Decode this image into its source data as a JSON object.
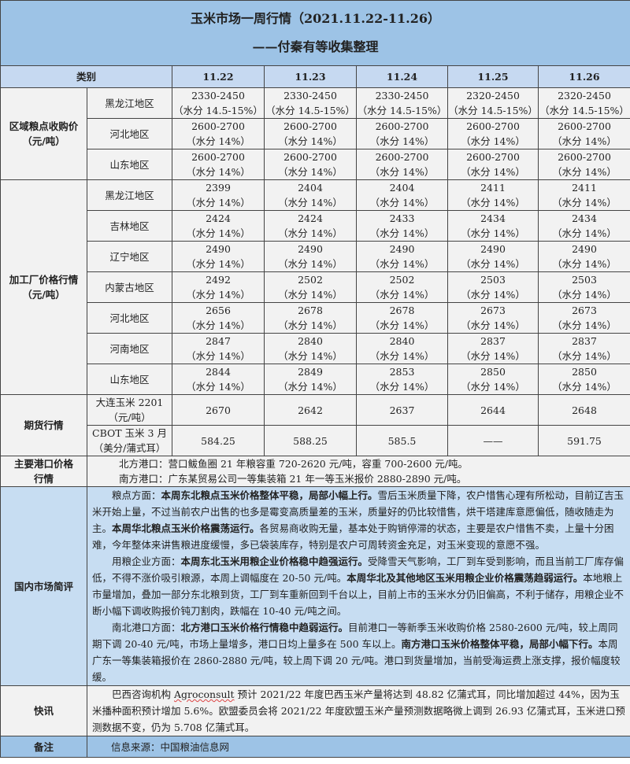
{
  "title": "玉米市场一周行情（2021.11.22-11.26）",
  "subtitle": "——付秦有等收集整理",
  "header": {
    "category": "类别",
    "dates": [
      "11.22",
      "11.23",
      "11.24",
      "11.25",
      "11.26"
    ]
  },
  "grain_purchase": {
    "label": "区域粮点收购价\n（元/吨）",
    "rows": [
      {
        "region": "黑龙江地区",
        "values": [
          "2330-2450",
          "2330-2450",
          "2330-2450",
          "2320-2450",
          "2320-2450"
        ],
        "note": "（水分 14.5-15%）"
      },
      {
        "region": "河北地区",
        "values": [
          "2600-2700",
          "2600-2700",
          "2600-2700",
          "2600-2700",
          "2600-2700"
        ],
        "note": "（水分 14%）"
      },
      {
        "region": "山东地区",
        "values": [
          "2600-2700",
          "2600-2700",
          "2600-2700",
          "2600-2700",
          "2600-2700"
        ],
        "note": "（水分 14%）"
      }
    ]
  },
  "factory_price": {
    "label": "加工厂价格行情\n（元/吨）",
    "rows": [
      {
        "region": "黑龙江地区",
        "values": [
          "2399",
          "2404",
          "2404",
          "2411",
          "2411"
        ],
        "note": "（水分 14%）"
      },
      {
        "region": "吉林地区",
        "values": [
          "2424",
          "2424",
          "2433",
          "2434",
          "2434"
        ],
        "note": "（水分 14%）"
      },
      {
        "region": "辽宁地区",
        "values": [
          "2490",
          "2490",
          "2490",
          "2490",
          "2490"
        ],
        "note": "（水分 14%）"
      },
      {
        "region": "内蒙古地区",
        "values": [
          "2492",
          "2502",
          "2502",
          "2503",
          "2503"
        ],
        "note": "（水分 14%）"
      },
      {
        "region": "河北地区",
        "values": [
          "2656",
          "2678",
          "2678",
          "2673",
          "2673"
        ],
        "note": "（水分 14%）"
      },
      {
        "region": "河南地区",
        "values": [
          "2847",
          "2840",
          "2840",
          "2837",
          "2837"
        ],
        "note": "（水分 14%）"
      },
      {
        "region": "山东地区",
        "values": [
          "2844",
          "2849",
          "2853",
          "2850",
          "2850"
        ],
        "note": "（水分 14%）"
      }
    ]
  },
  "futures": {
    "label": "期货行情",
    "rows": [
      {
        "region": "大连玉米 2201\n（元/吨）",
        "values": [
          "2670",
          "2642",
          "2637",
          "2644",
          "2648"
        ]
      },
      {
        "region": "CBOT 玉米 3 月\n（美分/蒲式耳）",
        "values": [
          "584.25",
          "588.25",
          "585.5",
          "——",
          "591.75"
        ]
      }
    ]
  },
  "ports": {
    "label": "主要港口价格\n行情",
    "lines": [
      "北方港口：营口鲅鱼圈 21 年粮容重 720-2620 元/吨，容重 700-2600 元/吨。",
      "南方港口：广东某贸易公司一等集装箱 21 年一等玉米报价 2880-2890 元/吨。"
    ]
  },
  "commentary": {
    "label": "国内市场简评",
    "paragraphs": [
      [
        {
          "t": "粮点方面："
        },
        {
          "t": "本周东北粮点玉米价格整体平稳，局部小幅上行。",
          "b": true
        },
        {
          "t": "雪后玉米质量下降，农户惜售心理有所松动，目前辽吉玉米开始上量，不过当前农户出售的也多是霉变高质量差的玉米，质量好的仍比较惜售，烘干塔建库意愿偏低，随收随走为主。"
        },
        {
          "t": "本周华北粮点玉米价格震荡运行。",
          "b": true
        },
        {
          "t": "各贸易商收购无量，基本处于购销停滞的状态，主要是农户惜售不卖，上量十分困难，今年整体来讲售粮进度缓慢，多已袋装库存，特别是农户可周转资金充足，对玉米变现的意愿不强。"
        }
      ],
      [
        {
          "t": "用粮企业方面："
        },
        {
          "t": "本周东北玉米用粮企业价格稳中趋强运行。",
          "b": true
        },
        {
          "t": "受降雪天气影响，工厂到车受到影响，而且当前工厂库存偏低，不得不涨价吸引粮源，本周上调幅度在 20-50 元/吨。"
        },
        {
          "t": "本周华北及其他地区玉米用粮企业价格震荡趋弱运行。",
          "b": true
        },
        {
          "t": "本地粮上市量增加，叠加一部分东北粮到货，工厂到车重新回到千台以上，目前上市的玉米水分仍旧偏高，不利于储存，用粮企业不断小幅下调收购报价钝刀割肉，跌幅在 10-40 元/吨之间。"
        }
      ],
      [
        {
          "t": "南北港口方面："
        },
        {
          "t": "北方港口玉米价格行情稳中趋弱运行。",
          "b": true
        },
        {
          "t": "目前港口一等新季玉米收购价格 2580-2600 元/吨，较上周同期下调 20-40 元/吨，市场上量增多，港口日均上量多在 500 车以上。"
        },
        {
          "t": "南方港口玉米价格整体平稳，局部小幅下行。",
          "b": true
        },
        {
          "t": "本周广东一等集装箱报价在 2860-2880 元/吨，较上周下调 20 元/吨。港口到货量增加，当前受海运费上涨支撑，报价幅度较缓。"
        }
      ]
    ]
  },
  "news": {
    "label": "快讯",
    "paragraph": [
      {
        "t": "巴西咨询机构 "
      },
      {
        "t": "Agroconsult",
        "u": true
      },
      {
        "t": " 预计 2021/22 年度巴西玉米产量将达到 48.82 亿蒲式耳，同比增加超过 44%，因为玉米播种面积预计增加 5.6%。欧盟委员会将 2021/22 年度欧盟玉米产量预测数据略微上调到 26.93 亿蒲式耳，玉米进口预测数据不变，仍为 5.708 亿蒲式耳。"
      }
    ]
  },
  "remarks": {
    "label": "备注",
    "text": "信息来源：中国粮油信息网"
  },
  "colors": {
    "title_bg": "#9dc3e6",
    "header_bg": "#c6d9f1",
    "cell_bg": "#f2f2f2",
    "commentary_bg": "#c7ddf2"
  }
}
